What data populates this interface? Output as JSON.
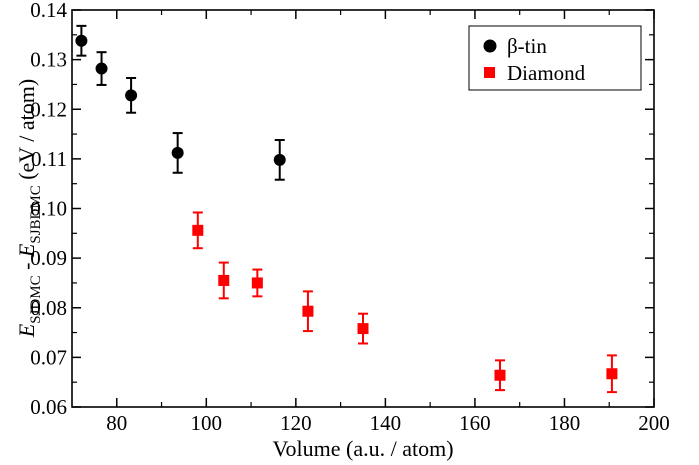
{
  "chart_data": {
    "type": "scatter",
    "xlabel": "Volume (a.u. / atom)",
    "ylabel": {
      "e1": "E",
      "sub1": "SJDMC",
      "sep": " - ",
      "e2": "E",
      "sub2": "SJBDMC",
      "unit": " (eV / atom)"
    },
    "xlim": [
      70,
      200
    ],
    "ylim": [
      0.06,
      0.14
    ],
    "xticks": [
      80,
      100,
      120,
      140,
      160,
      180,
      200
    ],
    "yticks": [
      "0.06",
      "0.07",
      "0.08",
      "0.09",
      "0.10",
      "0.11",
      "0.12",
      "0.13",
      "0.14"
    ],
    "grid": false,
    "legend_position": "top-right",
    "series": [
      {
        "name": "β-tin",
        "marker": "circle",
        "color": "#000000",
        "points": [
          {
            "x": 72.1,
            "y": 0.1338,
            "err": 0.003
          },
          {
            "x": 76.6,
            "y": 0.1282,
            "err": 0.0033
          },
          {
            "x": 83.2,
            "y": 0.1228,
            "err": 0.0035
          },
          {
            "x": 93.6,
            "y": 0.1112,
            "err": 0.004
          },
          {
            "x": 116.4,
            "y": 0.1098,
            "err": 0.004
          }
        ]
      },
      {
        "name": "Diamond",
        "marker": "square",
        "color": "#ff0000",
        "points": [
          {
            "x": 98.1,
            "y": 0.0956,
            "err": 0.0036
          },
          {
            "x": 103.9,
            "y": 0.0855,
            "err": 0.0036
          },
          {
            "x": 111.4,
            "y": 0.085,
            "err": 0.0027
          },
          {
            "x": 122.7,
            "y": 0.0793,
            "err": 0.004
          },
          {
            "x": 135.0,
            "y": 0.0758,
            "err": 0.003
          },
          {
            "x": 165.6,
            "y": 0.0664,
            "err": 0.003
          },
          {
            "x": 190.6,
            "y": 0.0667,
            "err": 0.0037
          }
        ]
      }
    ]
  }
}
